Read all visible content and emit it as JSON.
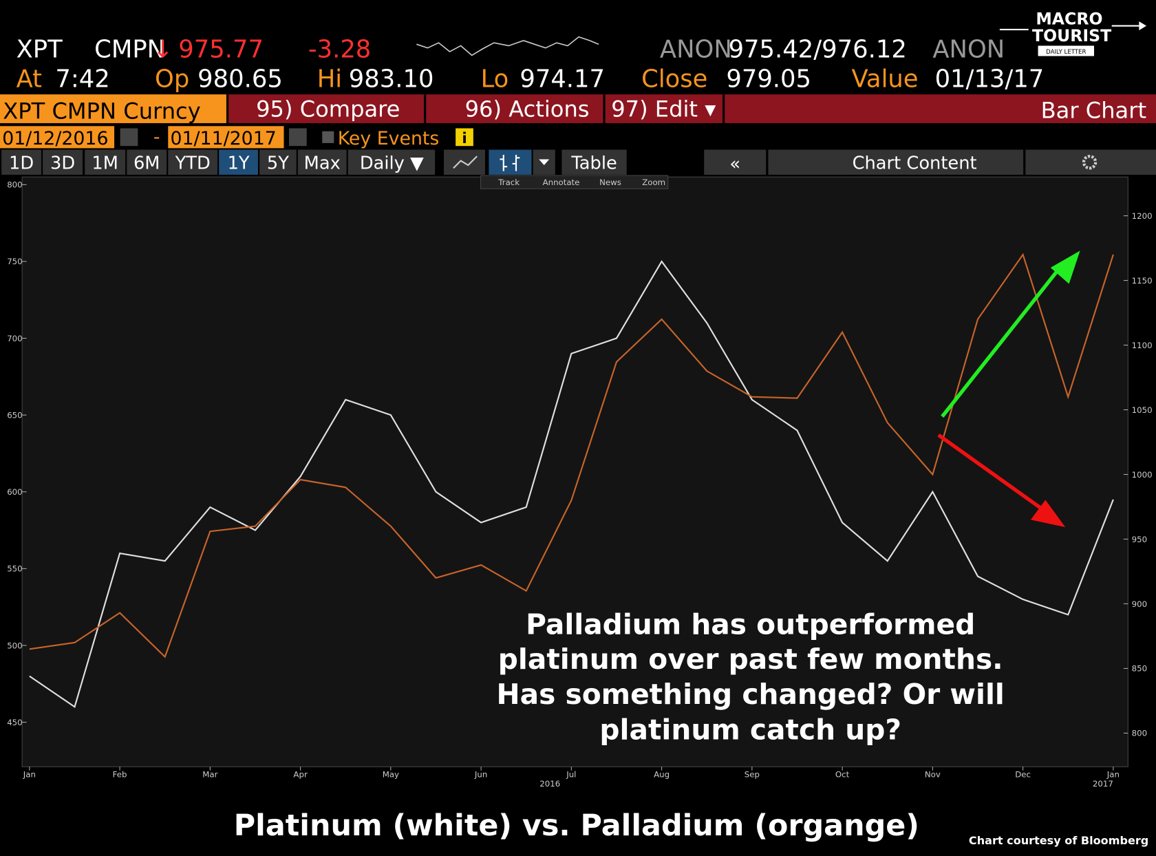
{
  "header": {
    "ticker": "XPT",
    "source": "CMPN",
    "direction": "↓",
    "last": "975.77",
    "change": "-3.28",
    "bid_source": "ANON",
    "bid_ask": "975.42/976.12",
    "ask_source": "ANON",
    "stats": [
      {
        "label": "At",
        "value": "7:42"
      },
      {
        "label": "Op",
        "value": "980.65"
      },
      {
        "label": "Hi",
        "value": "983.10"
      },
      {
        "label": "Lo",
        "value": "974.17"
      },
      {
        "label": "Close",
        "value": "979.05"
      },
      {
        "label": "Value",
        "value": "01/13/17"
      }
    ]
  },
  "logo": {
    "line1": "MACRO",
    "line2": "TOURIST",
    "line3": "DAILY LETTER"
  },
  "toolbar": {
    "security": "XPT CMPN Curncy",
    "compare": "95) Compare",
    "actions": "96) Actions",
    "edit": "97) Edit ▾",
    "view": "Bar Chart"
  },
  "date_range": {
    "start": "01/12/2016",
    "separator": "-",
    "end": "01/11/2017",
    "events": "Key Events"
  },
  "periods": [
    "1D",
    "3D",
    "1M",
    "6M",
    "YTD",
    "1Y",
    "5Y",
    "Max"
  ],
  "selected_period": "1Y",
  "frequency": "Daily ▼",
  "table": "Table",
  "collapse": "«",
  "chart_content": "Chart Content",
  "chart_tools": [
    "Track",
    "Annotate",
    "News",
    "Zoom"
  ],
  "chart_data": {
    "type": "line",
    "title": "Platinum (white) vs. Palladium (organge)",
    "credit": "Chart courtesy of Bloomberg",
    "annotation": [
      "Palladium has outperformed",
      "platinum over past few months.",
      "Has something changed?  Or will",
      "platinum catch up?"
    ],
    "categories": [
      "Jan",
      null,
      "Feb",
      null,
      "Mar",
      null,
      "Apr",
      null,
      "May",
      null,
      "Jun",
      null,
      "Jul",
      null,
      "Aug",
      null,
      "Sep",
      null,
      "Oct",
      null,
      "Nov",
      null,
      "Dec",
      null,
      "Jan"
    ],
    "year_labels": [
      "2016",
      "2017"
    ],
    "series": [
      {
        "color": "#e0e0e0",
        "values": [
          480,
          460,
          560,
          555,
          590,
          575,
          610,
          660,
          650,
          600,
          580,
          590,
          690,
          700,
          750,
          710,
          660,
          640,
          580,
          555,
          600,
          545,
          530,
          520,
          595
        ]
      },
      {
        "color": "#c8642a",
        "axis": "y2",
        "values": [
          865,
          870,
          893,
          859,
          956,
          960,
          996,
          990,
          960,
          920,
          930,
          910,
          980,
          1087,
          1120,
          1080,
          1060,
          1059,
          1110,
          1040,
          1000,
          1120,
          1170,
          1060,
          1170
        ]
      }
    ],
    "ylim": [
      421,
      805
    ],
    "yticks": [
      450,
      500,
      550,
      600,
      650,
      700,
      750,
      800
    ],
    "y2lim": [
      774,
      1230
    ],
    "y2ticks": [
      800,
      850,
      900,
      950,
      1000,
      1050,
      1100,
      1150,
      1200
    ]
  }
}
